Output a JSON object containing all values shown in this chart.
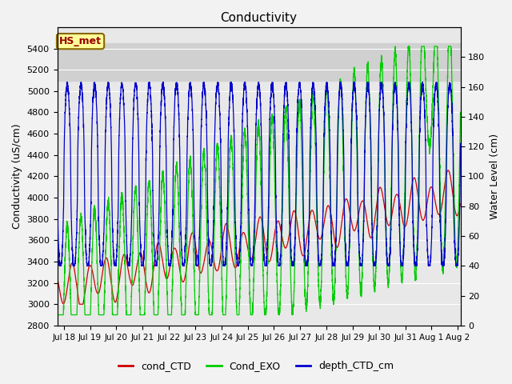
{
  "title": "Conductivity",
  "ylabel_left": "Conductivity (uS/cm)",
  "ylabel_right": "Water Level (cm)",
  "ylim_left": [
    2800,
    5600
  ],
  "ylim_right": [
    0,
    200
  ],
  "yticks_left": [
    2800,
    3000,
    3200,
    3400,
    3600,
    3800,
    4000,
    4200,
    4400,
    4600,
    4800,
    5000,
    5200,
    5400
  ],
  "yticks_right": [
    0,
    20,
    40,
    60,
    80,
    100,
    120,
    140,
    160,
    180
  ],
  "color_cond_CTD": "#cc0000",
  "color_Cond_EXO": "#00cc00",
  "color_depth_CTD": "#0000cc",
  "background_color": "#f0f0f0",
  "plot_bg_color": "#e8e8e8",
  "highlight_band_ymin": 5100,
  "highlight_band_ymax": 5450,
  "highlight_band_color": "#d0d0d0",
  "hs_met_text": "HS_met",
  "hs_met_box_color": "#ffff99",
  "hs_met_text_color": "#990000",
  "hs_met_border_color": "#886600",
  "legend_labels": [
    "cond_CTD",
    "Cond_EXO",
    "depth_CTD_cm"
  ],
  "x_start_day": 17.75,
  "x_end_day": 33.1,
  "xtick_positions": [
    18,
    19,
    20,
    21,
    22,
    23,
    24,
    25,
    26,
    27,
    28,
    29,
    30,
    31,
    32,
    33
  ],
  "xtick_labels": [
    "Jul 18",
    "Jul 19",
    "Jul 20",
    "Jul 21",
    "Jul 22",
    "Jul 23",
    "Jul 24",
    "Jul 25",
    "Jul 26",
    "Jul 27",
    "Jul 28",
    "Jul 29",
    "Jul 30",
    "Jul 31",
    "Aug 1",
    "Aug 2"
  ],
  "tidal_period": 0.52,
  "depth_min_cm": 40,
  "depth_max_cm": 163,
  "depth_base": 100,
  "depth_amp": 62
}
